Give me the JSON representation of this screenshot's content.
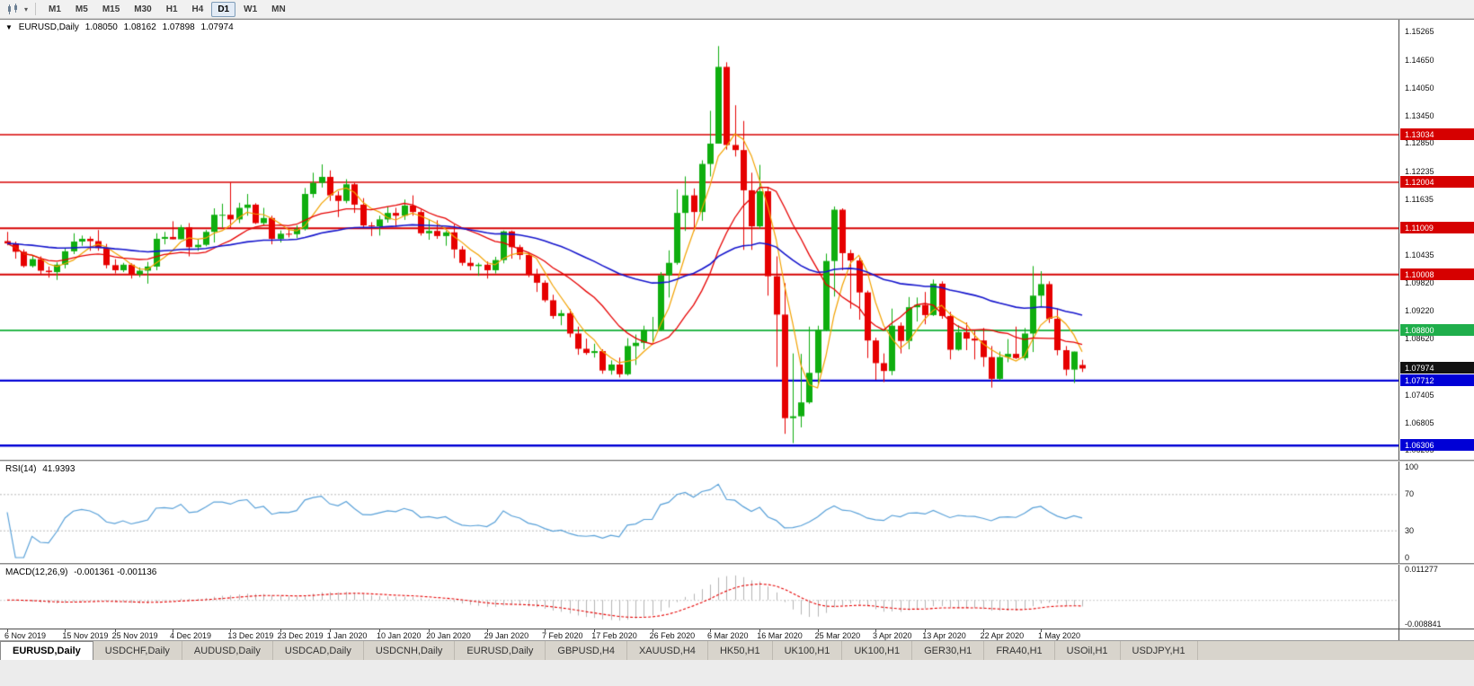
{
  "icons": {
    "legend_arrow": "▼",
    "toolbar_dropdown": "▾"
  },
  "toolbar": {
    "timeframes": [
      {
        "label": "M1",
        "active": false
      },
      {
        "label": "M5",
        "active": false
      },
      {
        "label": "M15",
        "active": false
      },
      {
        "label": "M30",
        "active": false
      },
      {
        "label": "H1",
        "active": false
      },
      {
        "label": "H4",
        "active": false
      },
      {
        "label": "D1",
        "active": true
      },
      {
        "label": "W1",
        "active": false
      },
      {
        "label": "MN",
        "active": false
      }
    ]
  },
  "main_chart": {
    "symbol": "EURUSD,Daily",
    "ohlc": {
      "open": "1.08050",
      "high": "1.08162",
      "low": "1.07898",
      "close": "1.07974"
    },
    "y_ticks": [
      "1.15265",
      "1.14650",
      "1.14050",
      "1.13450",
      "1.12850",
      "1.12235",
      "1.11635",
      "1.11035",
      "1.10435",
      "1.09820",
      "1.09220",
      "1.08620",
      "1.08020",
      "1.07405",
      "1.06805",
      "1.06205"
    ],
    "price_tags": [
      {
        "text": "1.13034",
        "price": 1.13034,
        "bg": "#d60000"
      },
      {
        "text": "1.12004",
        "price": 1.12004,
        "bg": "#d60000"
      },
      {
        "text": "1.11009",
        "price": 1.11009,
        "bg": "#d60000"
      },
      {
        "text": "1.10008",
        "price": 1.10008,
        "bg": "#d60000"
      },
      {
        "text": "1.08800",
        "price": 1.088,
        "bg": "#1fae4b"
      },
      {
        "text": "1.07974",
        "price": 1.07974,
        "bg": "#111111"
      },
      {
        "text": "1.07712",
        "price": 1.07712,
        "bg": "#0000d6"
      },
      {
        "text": "1.06306",
        "price": 1.06306,
        "bg": "#0000d6"
      }
    ]
  },
  "rsi_panel": {
    "label": "RSI(14)",
    "value": "41.9393",
    "y_ticks": [
      {
        "text": "100",
        "v": 100
      },
      {
        "text": "70",
        "v": 70
      },
      {
        "text": "30",
        "v": 30
      },
      {
        "text": "0",
        "v": 0
      }
    ]
  },
  "macd_panel": {
    "label": "MACD(12,26,9)",
    "values": "-0.001361 -0.001136",
    "y_ticks": [
      {
        "text": "0.011277",
        "v": 0.011277
      },
      {
        "text": "-0.008841",
        "v": -0.008841
      }
    ]
  },
  "time_axis": {
    "labels": [
      {
        "text": "6 Nov 2019",
        "i": 0
      },
      {
        "text": "15 Nov 2019",
        "i": 7
      },
      {
        "text": "25 Nov 2019",
        "i": 13
      },
      {
        "text": "4 Dec 2019",
        "i": 20
      },
      {
        "text": "13 Dec 2019",
        "i": 27
      },
      {
        "text": "23 Dec 2019",
        "i": 33
      },
      {
        "text": "1 Jan 2020",
        "i": 39
      },
      {
        "text": "10 Jan 2020",
        "i": 45
      },
      {
        "text": "20 Jan 2020",
        "i": 51
      },
      {
        "text": "29 Jan 2020",
        "i": 58
      },
      {
        "text": "7 Feb 2020",
        "i": 65
      },
      {
        "text": "17 Feb 2020",
        "i": 71
      },
      {
        "text": "26 Feb 2020",
        "i": 78
      },
      {
        "text": "6 Mar 2020",
        "i": 85
      },
      {
        "text": "16 Mar 2020",
        "i": 91
      },
      {
        "text": "25 Mar 2020",
        "i": 98
      },
      {
        "text": "3 Apr 2020",
        "i": 105
      },
      {
        "text": "13 Apr 2020",
        "i": 111
      },
      {
        "text": "22 Apr 2020",
        "i": 118
      },
      {
        "text": "1 May 2020",
        "i": 125
      }
    ]
  },
  "tabs": [
    {
      "label": "EURUSD,Daily",
      "active": true
    },
    {
      "label": "USDCHF,Daily",
      "active": false
    },
    {
      "label": "AUDUSD,Daily",
      "active": false
    },
    {
      "label": "USDCAD,Daily",
      "active": false
    },
    {
      "label": "USDCNH,Daily",
      "active": false
    },
    {
      "label": "EURUSD,Daily",
      "active": false
    },
    {
      "label": "GBPUSD,H4",
      "active": false
    },
    {
      "label": "XAUUSD,H4",
      "active": false
    },
    {
      "label": "HK50,H1",
      "active": false
    },
    {
      "label": "UK100,H1",
      "active": false
    },
    {
      "label": "UK100,H1",
      "active": false
    },
    {
      "label": "GER30,H1",
      "active": false
    },
    {
      "label": "FRA40,H1",
      "active": false
    },
    {
      "label": "USOil,H1",
      "active": false
    },
    {
      "label": "USDJPY,H1",
      "active": false
    }
  ],
  "chart_data": {
    "type": "candlestick",
    "symbol": "EURUSD",
    "timeframe": "Daily",
    "title": "EURUSD,Daily 1.08050 1.08162 1.07898 1.07974",
    "y_range": [
      1.06,
      1.1552
    ],
    "up_color": "#0fae0f",
    "down_color": "#e60000",
    "ohlc": [
      [
        1.1073,
        1.1093,
        1.1064,
        1.1068
      ],
      [
        1.1068,
        1.1072,
        1.1035,
        1.105
      ],
      [
        1.105,
        1.1055,
        1.1016,
        1.1019
      ],
      [
        1.1019,
        1.1041,
        1.1016,
        1.1034
      ],
      [
        1.1034,
        1.104,
        1.1002,
        1.1009
      ],
      [
        1.1009,
        1.1018,
        1.0994,
        1.1006
      ],
      [
        1.1006,
        1.1027,
        1.0989,
        1.1022
      ],
      [
        1.1022,
        1.1057,
        1.1014,
        1.1051
      ],
      [
        1.1051,
        1.109,
        1.1045,
        1.1072
      ],
      [
        1.1072,
        1.1085,
        1.1063,
        1.1078
      ],
      [
        1.1078,
        1.1083,
        1.1052,
        1.1073
      ],
      [
        1.1073,
        1.1097,
        1.1052,
        1.1058
      ],
      [
        1.1058,
        1.1067,
        1.1014,
        1.1021
      ],
      [
        1.1021,
        1.1034,
        1.1003,
        1.101
      ],
      [
        1.101,
        1.1026,
        1.1006,
        1.1022
      ],
      [
        1.1022,
        1.1025,
        1.0992,
        1.1001
      ],
      [
        1.1001,
        1.1016,
        1.0995,
        1.1009
      ],
      [
        1.1009,
        1.1028,
        1.0981,
        1.1018
      ],
      [
        1.1018,
        1.109,
        1.101,
        1.1078
      ],
      [
        1.1078,
        1.1093,
        1.1066,
        1.1082
      ],
      [
        1.1082,
        1.1116,
        1.1077,
        1.1077
      ],
      [
        1.1077,
        1.1108,
        1.1077,
        1.1103
      ],
      [
        1.1103,
        1.1112,
        1.104,
        1.106
      ],
      [
        1.106,
        1.1077,
        1.1052,
        1.1065
      ],
      [
        1.1065,
        1.1097,
        1.1062,
        1.1093
      ],
      [
        1.1093,
        1.1144,
        1.107,
        1.113
      ],
      [
        1.113,
        1.1154,
        1.1102,
        1.113
      ],
      [
        1.113,
        1.12,
        1.11,
        1.112
      ],
      [
        1.112,
        1.1156,
        1.1112,
        1.1145
      ],
      [
        1.1145,
        1.1175,
        1.1128,
        1.1152
      ],
      [
        1.1152,
        1.1155,
        1.111,
        1.1112
      ],
      [
        1.1112,
        1.1145,
        1.1107,
        1.1123
      ],
      [
        1.1123,
        1.1128,
        1.1066,
        1.1078
      ],
      [
        1.1078,
        1.1096,
        1.107,
        1.1089
      ],
      [
        1.1089,
        1.1098,
        1.1081,
        1.1088
      ],
      [
        1.1088,
        1.1107,
        1.108,
        1.1099
      ],
      [
        1.1099,
        1.1188,
        1.1096,
        1.1175
      ],
      [
        1.1175,
        1.1221,
        1.1167,
        1.1199
      ],
      [
        1.1199,
        1.1239,
        1.1189,
        1.1212
      ],
      [
        1.1212,
        1.1226,
        1.116,
        1.1172
      ],
      [
        1.1172,
        1.1181,
        1.1125,
        1.116
      ],
      [
        1.116,
        1.1207,
        1.1155,
        1.1196
      ],
      [
        1.1196,
        1.1199,
        1.1134,
        1.1152
      ],
      [
        1.1152,
        1.1166,
        1.1103,
        1.1107
      ],
      [
        1.1107,
        1.1114,
        1.1084,
        1.1105
      ],
      [
        1.1105,
        1.1128,
        1.1085,
        1.112
      ],
      [
        1.112,
        1.1148,
        1.1113,
        1.1134
      ],
      [
        1.1134,
        1.1145,
        1.1104,
        1.1128
      ],
      [
        1.1128,
        1.1163,
        1.1119,
        1.115
      ],
      [
        1.115,
        1.1172,
        1.1128,
        1.1136
      ],
      [
        1.1136,
        1.1141,
        1.1085,
        1.109
      ],
      [
        1.109,
        1.1119,
        1.1076,
        1.1095
      ],
      [
        1.1095,
        1.1118,
        1.1078,
        1.1084
      ],
      [
        1.1084,
        1.1095,
        1.1063,
        1.1092
      ],
      [
        1.1092,
        1.1109,
        1.1036,
        1.1055
      ],
      [
        1.1055,
        1.1062,
        1.102,
        1.1026
      ],
      [
        1.1026,
        1.1038,
        1.101,
        1.1019
      ],
      [
        1.1019,
        1.1026,
        1.0998,
        1.1022
      ],
      [
        1.1022,
        1.1029,
        1.0992,
        1.101
      ],
      [
        1.101,
        1.1039,
        1.1003,
        1.1032
      ],
      [
        1.1032,
        1.1096,
        1.1025,
        1.1094
      ],
      [
        1.1094,
        1.1096,
        1.1035,
        1.106
      ],
      [
        1.106,
        1.1065,
        1.1033,
        1.1043
      ],
      [
        1.1043,
        1.1049,
        1.0995,
        1.1
      ],
      [
        1.1,
        1.1013,
        1.0963,
        1.0983
      ],
      [
        1.0983,
        1.0988,
        1.0941,
        1.0945
      ],
      [
        1.0945,
        1.0957,
        1.0905,
        1.0911
      ],
      [
        1.0911,
        1.0924,
        1.0891,
        1.0917
      ],
      [
        1.0917,
        1.0926,
        1.0865,
        1.0873
      ],
      [
        1.0873,
        1.0888,
        1.0827,
        1.084
      ],
      [
        1.084,
        1.0862,
        1.0827,
        1.0831
      ],
      [
        1.0831,
        1.0851,
        1.0821,
        1.0835
      ],
      [
        1.0835,
        1.0839,
        1.0786,
        1.0793
      ],
      [
        1.0793,
        1.0815,
        1.0784,
        1.0806
      ],
      [
        1.0806,
        1.0821,
        1.0778,
        1.0785
      ],
      [
        1.0785,
        1.0863,
        1.0782,
        1.0846
      ],
      [
        1.0846,
        1.0871,
        1.0805,
        1.0853
      ],
      [
        1.0853,
        1.089,
        1.0839,
        1.0881
      ],
      [
        1.0881,
        1.0909,
        1.0855,
        1.0881
      ],
      [
        1.0881,
        1.1006,
        1.0879,
        1.0999
      ],
      [
        1.0999,
        1.1053,
        1.0951,
        1.1026
      ],
      [
        1.1026,
        1.1185,
        1.1022,
        1.1134
      ],
      [
        1.1134,
        1.1213,
        1.1095,
        1.1172
      ],
      [
        1.1172,
        1.1187,
        1.1095,
        1.1136
      ],
      [
        1.1136,
        1.1248,
        1.1117,
        1.124
      ],
      [
        1.124,
        1.1355,
        1.1213,
        1.1284
      ],
      [
        1.1284,
        1.1495,
        1.1284,
        1.145
      ],
      [
        1.145,
        1.146,
        1.1271,
        1.1281
      ],
      [
        1.1281,
        1.1367,
        1.1256,
        1.127
      ],
      [
        1.127,
        1.1333,
        1.1054,
        1.1183
      ],
      [
        1.1183,
        1.1221,
        1.1054,
        1.1105
      ],
      [
        1.1105,
        1.1238,
        1.11,
        1.1181
      ],
      [
        1.1181,
        1.1189,
        1.0955,
        1.0997
      ],
      [
        1.0997,
        1.104,
        1.0801,
        1.0914
      ],
      [
        1.0914,
        1.0982,
        1.0656,
        1.069
      ],
      [
        1.069,
        1.083,
        1.0636,
        1.0694
      ],
      [
        1.0694,
        1.0829,
        1.067,
        1.0724
      ],
      [
        1.0724,
        1.0888,
        1.0721,
        1.0788
      ],
      [
        1.0788,
        1.089,
        1.0762,
        1.0881
      ],
      [
        1.0881,
        1.1046,
        1.0878,
        1.103
      ],
      [
        1.103,
        1.1148,
        1.0953,
        1.1141
      ],
      [
        1.1141,
        1.1144,
        1.101,
        1.1047
      ],
      [
        1.1047,
        1.1054,
        1.0927,
        1.1031
      ],
      [
        1.1031,
        1.1038,
        1.0903,
        1.0962
      ],
      [
        1.0962,
        1.0966,
        1.082,
        1.0858
      ],
      [
        1.0858,
        1.0864,
        1.0773,
        1.0809
      ],
      [
        1.0809,
        1.083,
        1.0768,
        1.0792
      ],
      [
        1.0792,
        1.0927,
        1.0783,
        1.089
      ],
      [
        1.089,
        1.0897,
        1.083,
        1.0857
      ],
      [
        1.0857,
        1.0952,
        1.0839,
        1.093
      ],
      [
        1.093,
        1.0951,
        1.0899,
        1.0935
      ],
      [
        1.0935,
        1.0963,
        1.0893,
        1.0913
      ],
      [
        1.0913,
        1.099,
        1.0911,
        1.0981
      ],
      [
        1.0981,
        1.0986,
        1.0905,
        1.0911
      ],
      [
        1.0911,
        1.092,
        1.0817,
        1.0838
      ],
      [
        1.0838,
        1.0891,
        1.0836,
        1.0876
      ],
      [
        1.0876,
        1.0897,
        1.0837,
        1.0862
      ],
      [
        1.0862,
        1.0879,
        1.0817,
        1.0858
      ],
      [
        1.0858,
        1.0885,
        1.0801,
        1.0822
      ],
      [
        1.0822,
        1.0846,
        1.0756,
        1.0775
      ],
      [
        1.0775,
        1.0834,
        1.0772,
        1.0822
      ],
      [
        1.0822,
        1.0861,
        1.0811,
        1.0829
      ],
      [
        1.0829,
        1.0888,
        1.0818,
        1.082
      ],
      [
        1.082,
        1.0885,
        1.0815,
        1.0873
      ],
      [
        1.0873,
        1.1019,
        1.0833,
        1.0955
      ],
      [
        1.0955,
        1.1008,
        1.0932,
        1.098
      ],
      [
        1.098,
        1.0986,
        1.0896,
        1.0905
      ],
      [
        1.0905,
        1.0927,
        1.0826,
        1.0837
      ],
      [
        1.0837,
        1.0846,
        1.0782,
        1.0795
      ],
      [
        1.0795,
        1.0834,
        1.0766,
        1.0834
      ],
      [
        1.0805,
        1.08162,
        1.07898,
        1.07974
      ]
    ],
    "moving_averages": [
      {
        "period": 5,
        "method": "sma",
        "color": "#f2a200",
        "width": 1.2
      },
      {
        "period": 13,
        "method": "sma",
        "color": "#e60000",
        "width": 1.3
      },
      {
        "period": 50,
        "method": "ema",
        "color": "#1414cc",
        "width": 1.6
      }
    ],
    "h_lines": [
      {
        "price": 1.13034,
        "color": "#d60000",
        "w": 1.4
      },
      {
        "price": 1.12004,
        "color": "#d60000",
        "w": 1.4
      },
      {
        "price": 1.11009,
        "color": "#d60000",
        "w": 2
      },
      {
        "price": 1.10008,
        "color": "#d60000",
        "w": 2
      },
      {
        "price": 1.088,
        "color": "#2db84d",
        "w": 2
      },
      {
        "price": 1.07712,
        "color": "#0000d6",
        "w": 2.4
      },
      {
        "price": 1.06306,
        "color": "#0000d6",
        "w": 2.4
      }
    ],
    "rsi": {
      "period": 14,
      "color": "#58a0d8",
      "current": 41.9393,
      "range": [
        0,
        100
      ],
      "levels": [
        70,
        30
      ]
    },
    "macd": {
      "fast": 12,
      "slow": 26,
      "signal": 9,
      "range": [
        -0.008841,
        0.011277
      ],
      "histogram_color": "#b4b4b4",
      "signal_color": "#e60000",
      "current_macd": -0.001361,
      "current_signal": -0.001136
    }
  }
}
